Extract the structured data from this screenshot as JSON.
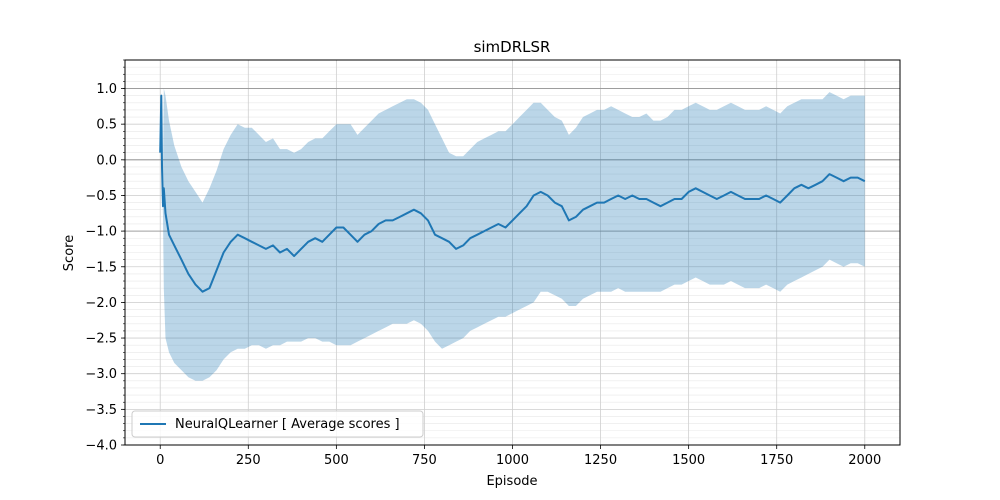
{
  "chart_data": {
    "type": "line",
    "title": "simDRLSR",
    "xlabel": "Episode",
    "ylabel": "Score",
    "xlim": [
      -100,
      2100
    ],
    "ylim": [
      -4.0,
      1.4
    ],
    "xticks": [
      0,
      250,
      500,
      750,
      1000,
      1250,
      1500,
      1750,
      2000
    ],
    "xtick_labels": [
      "0",
      "250",
      "500",
      "750",
      "1000",
      "1250",
      "1500",
      "1750",
      "2000"
    ],
    "yticks": [
      -4.0,
      -3.5,
      -3.0,
      -2.5,
      -2.0,
      -1.5,
      -1.0,
      -0.5,
      0.0,
      0.5,
      1.0
    ],
    "ytick_labels": [
      "−4.0",
      "−3.5",
      "−3.0",
      "−2.5",
      "−2.0",
      "−1.5",
      "−1.0",
      "−0.5",
      "0.0",
      "0.5",
      "1.0"
    ],
    "grid": true,
    "reference_lines_y": [
      1.0,
      0.0,
      -1.0
    ],
    "legend_position": "lower-left",
    "series": [
      {
        "name": "NeuralQLearner [ Average scores ]",
        "color": "#1f77b4",
        "band_color": "#1f77b4",
        "x": [
          0,
          3,
          5,
          8,
          10,
          15,
          25,
          40,
          60,
          80,
          100,
          120,
          140,
          160,
          180,
          200,
          220,
          240,
          260,
          280,
          300,
          320,
          340,
          360,
          380,
          400,
          420,
          440,
          460,
          480,
          500,
          520,
          540,
          560,
          580,
          600,
          620,
          640,
          660,
          680,
          700,
          720,
          740,
          760,
          780,
          800,
          820,
          840,
          860,
          880,
          900,
          920,
          940,
          960,
          980,
          1000,
          1020,
          1040,
          1060,
          1080,
          1100,
          1120,
          1140,
          1160,
          1180,
          1200,
          1220,
          1240,
          1260,
          1280,
          1300,
          1320,
          1340,
          1360,
          1380,
          1400,
          1420,
          1440,
          1460,
          1480,
          1500,
          1520,
          1540,
          1560,
          1580,
          1600,
          1620,
          1640,
          1660,
          1680,
          1700,
          1720,
          1740,
          1760,
          1780,
          1800,
          1820,
          1840,
          1860,
          1880,
          1900,
          1920,
          1940,
          1960,
          1980,
          2000
        ],
        "y": [
          0.1,
          0.9,
          -0.1,
          -0.65,
          -0.4,
          -0.75,
          -1.05,
          -1.2,
          -1.4,
          -1.6,
          -1.75,
          -1.85,
          -1.8,
          -1.55,
          -1.3,
          -1.15,
          -1.05,
          -1.1,
          -1.15,
          -1.2,
          -1.25,
          -1.2,
          -1.3,
          -1.25,
          -1.35,
          -1.25,
          -1.15,
          -1.1,
          -1.15,
          -1.05,
          -0.95,
          -0.95,
          -1.05,
          -1.15,
          -1.05,
          -1.0,
          -0.9,
          -0.85,
          -0.85,
          -0.8,
          -0.75,
          -0.7,
          -0.75,
          -0.85,
          -1.05,
          -1.1,
          -1.15,
          -1.25,
          -1.2,
          -1.1,
          -1.05,
          -1.0,
          -0.95,
          -0.9,
          -0.95,
          -0.85,
          -0.75,
          -0.65,
          -0.5,
          -0.45,
          -0.5,
          -0.6,
          -0.65,
          -0.85,
          -0.8,
          -0.7,
          -0.65,
          -0.6,
          -0.6,
          -0.55,
          -0.5,
          -0.55,
          -0.5,
          -0.55,
          -0.55,
          -0.6,
          -0.65,
          -0.6,
          -0.55,
          -0.55,
          -0.45,
          -0.4,
          -0.45,
          -0.5,
          -0.55,
          -0.5,
          -0.45,
          -0.5,
          -0.55,
          -0.55,
          -0.55,
          -0.5,
          -0.55,
          -0.6,
          -0.5,
          -0.4,
          -0.35,
          -0.4,
          -0.35,
          -0.3,
          -0.2,
          -0.25,
          -0.3,
          -0.25,
          -0.25,
          -0.3
        ],
        "lower": [
          0.1,
          0.85,
          -0.3,
          -0.8,
          -1.8,
          -2.5,
          -2.7,
          -2.85,
          -2.95,
          -3.05,
          -3.1,
          -3.1,
          -3.05,
          -2.95,
          -2.8,
          -2.7,
          -2.65,
          -2.65,
          -2.6,
          -2.6,
          -2.65,
          -2.6,
          -2.6,
          -2.55,
          -2.55,
          -2.55,
          -2.5,
          -2.5,
          -2.55,
          -2.55,
          -2.6,
          -2.6,
          -2.6,
          -2.55,
          -2.5,
          -2.45,
          -2.4,
          -2.35,
          -2.3,
          -2.3,
          -2.3,
          -2.25,
          -2.3,
          -2.4,
          -2.55,
          -2.65,
          -2.6,
          -2.55,
          -2.5,
          -2.4,
          -2.35,
          -2.3,
          -2.25,
          -2.2,
          -2.2,
          -2.15,
          -2.1,
          -2.05,
          -2.0,
          -1.85,
          -1.85,
          -1.9,
          -1.95,
          -2.05,
          -2.05,
          -1.95,
          -1.9,
          -1.85,
          -1.85,
          -1.85,
          -1.8,
          -1.85,
          -1.85,
          -1.85,
          -1.85,
          -1.85,
          -1.85,
          -1.8,
          -1.75,
          -1.75,
          -1.7,
          -1.65,
          -1.7,
          -1.75,
          -1.75,
          -1.75,
          -1.7,
          -1.75,
          -1.8,
          -1.8,
          -1.8,
          -1.75,
          -1.8,
          -1.85,
          -1.75,
          -1.7,
          -1.65,
          -1.6,
          -1.55,
          -1.5,
          -1.4,
          -1.45,
          -1.5,
          -1.45,
          -1.45,
          -1.5
        ],
        "upper": [
          0.1,
          0.95,
          0.1,
          -0.1,
          1.0,
          0.9,
          0.55,
          0.2,
          -0.1,
          -0.3,
          -0.45,
          -0.6,
          -0.4,
          -0.15,
          0.15,
          0.35,
          0.5,
          0.45,
          0.45,
          0.35,
          0.25,
          0.3,
          0.15,
          0.15,
          0.1,
          0.15,
          0.25,
          0.3,
          0.3,
          0.4,
          0.5,
          0.5,
          0.5,
          0.35,
          0.45,
          0.55,
          0.65,
          0.7,
          0.75,
          0.8,
          0.85,
          0.85,
          0.8,
          0.7,
          0.5,
          0.3,
          0.1,
          0.05,
          0.05,
          0.15,
          0.25,
          0.3,
          0.35,
          0.4,
          0.4,
          0.5,
          0.6,
          0.7,
          0.8,
          0.8,
          0.7,
          0.6,
          0.55,
          0.35,
          0.45,
          0.6,
          0.65,
          0.7,
          0.7,
          0.75,
          0.7,
          0.65,
          0.6,
          0.6,
          0.65,
          0.55,
          0.55,
          0.6,
          0.7,
          0.7,
          0.75,
          0.8,
          0.75,
          0.7,
          0.7,
          0.75,
          0.8,
          0.75,
          0.7,
          0.7,
          0.7,
          0.75,
          0.7,
          0.65,
          0.75,
          0.8,
          0.85,
          0.85,
          0.85,
          0.85,
          0.95,
          0.9,
          0.85,
          0.9,
          0.9,
          0.9
        ]
      }
    ]
  }
}
